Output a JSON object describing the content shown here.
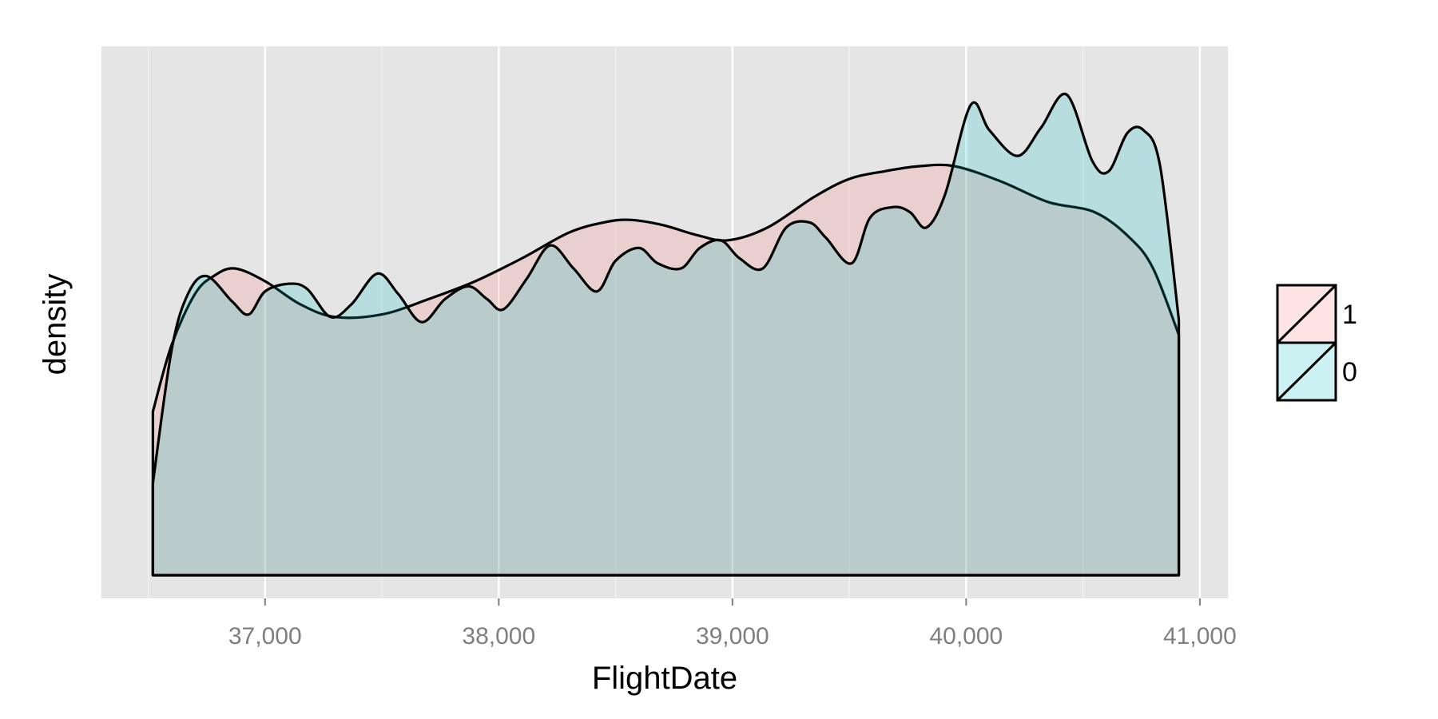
{
  "chart_data": {
    "type": "area",
    "subtype": "density",
    "title": "",
    "xlabel": "FlightDate",
    "ylabel": "density",
    "xlim": [
      36300,
      41120
    ],
    "ylim": [
      0,
      1
    ],
    "x_ticks": [
      37000,
      38000,
      39000,
      40000,
      41000
    ],
    "x_tick_labels": [
      "37,000",
      "38,000",
      "39,000",
      "40,000",
      "41,000"
    ],
    "y_ticks_shown": false,
    "grid": true,
    "legend_position": "right",
    "legend": [
      {
        "label": "1",
        "color": "#F8766D"
      },
      {
        "label": "0",
        "color": "#00BFC4"
      }
    ],
    "series": [
      {
        "name": "1",
        "color": "#F8766D",
        "x": [
          36520,
          36600,
          36700,
          36780,
          36870,
          37000,
          37150,
          37300,
          37500,
          37700,
          37900,
          38100,
          38300,
          38450,
          38560,
          38700,
          38850,
          38980,
          39150,
          39350,
          39500,
          39650,
          39800,
          39950,
          40150,
          40350,
          40550,
          40700,
          40800,
          40910
        ],
        "y": [
          0.32,
          0.45,
          0.55,
          0.585,
          0.6,
          0.575,
          0.53,
          0.505,
          0.51,
          0.54,
          0.575,
          0.62,
          0.67,
          0.69,
          0.695,
          0.685,
          0.665,
          0.655,
          0.68,
          0.74,
          0.775,
          0.79,
          0.8,
          0.8,
          0.77,
          0.73,
          0.71,
          0.66,
          0.6,
          0.47
        ]
      },
      {
        "name": "0",
        "color": "#00BFC4",
        "x": [
          36520,
          36600,
          36670,
          36750,
          36860,
          36930,
          37000,
          37100,
          37180,
          37280,
          37370,
          37480,
          37570,
          37670,
          37770,
          37870,
          37950,
          38020,
          38120,
          38220,
          38320,
          38420,
          38500,
          38600,
          38680,
          38780,
          38860,
          38950,
          39030,
          39130,
          39230,
          39330,
          39400,
          39510,
          39590,
          39690,
          39760,
          39830,
          39910,
          40020,
          40100,
          40220,
          40320,
          40430,
          40540,
          40610,
          40690,
          40760,
          40830,
          40910
        ],
        "y": [
          0.18,
          0.44,
          0.55,
          0.585,
          0.535,
          0.51,
          0.555,
          0.57,
          0.56,
          0.505,
          0.53,
          0.59,
          0.55,
          0.495,
          0.54,
          0.565,
          0.54,
          0.52,
          0.58,
          0.645,
          0.6,
          0.555,
          0.615,
          0.64,
          0.61,
          0.6,
          0.64,
          0.655,
          0.62,
          0.6,
          0.68,
          0.69,
          0.66,
          0.61,
          0.7,
          0.72,
          0.71,
          0.68,
          0.745,
          0.92,
          0.87,
          0.82,
          0.875,
          0.94,
          0.81,
          0.79,
          0.865,
          0.87,
          0.8,
          0.5
        ]
      }
    ]
  }
}
